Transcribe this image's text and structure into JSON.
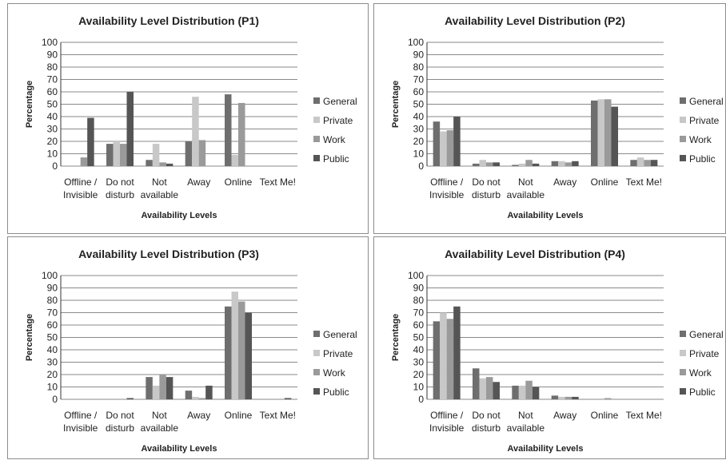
{
  "colors": {
    "General": "#6e6e6e",
    "Private": "#c8c8c8",
    "Work": "#9a9a9a",
    "Public": "#555555",
    "grid": "#8a8a8a",
    "axis": "#333333"
  },
  "chart_data": [
    {
      "type": "bar",
      "title": "Availability Level Distribution (P1)",
      "xlabel": "Availability Levels",
      "ylabel": "Percentage",
      "ylim": [
        0,
        100
      ],
      "yticks": [
        "0",
        "10",
        "20",
        "30",
        "40",
        "50",
        "60",
        "70",
        "80",
        "90",
        "100"
      ],
      "categories": [
        [
          "Offline /",
          "Invisible"
        ],
        [
          "Do not",
          "disturb"
        ],
        [
          "Not",
          "available"
        ],
        [
          "Away"
        ],
        [
          "Online"
        ],
        [
          "Text Me!"
        ]
      ],
      "legend_position": "right",
      "series": [
        {
          "name": "General",
          "values": [
            0,
            18,
            5,
            20,
            58,
            0
          ]
        },
        {
          "name": "Private",
          "values": [
            0,
            20,
            18,
            56,
            9,
            0
          ]
        },
        {
          "name": "Work",
          "values": [
            7,
            18,
            3,
            21,
            51,
            0
          ]
        },
        {
          "name": "Public",
          "values": [
            39,
            60,
            2,
            0,
            0,
            0
          ]
        }
      ]
    },
    {
      "type": "bar",
      "title": "Availability Level Distribution (P2)",
      "xlabel": "Availability Levels",
      "ylabel": "Percentage",
      "ylim": [
        0,
        100
      ],
      "yticks": [
        "0",
        "10",
        "20",
        "30",
        "40",
        "50",
        "60",
        "70",
        "80",
        "90",
        "100"
      ],
      "categories": [
        [
          "Offline /",
          "Invisible"
        ],
        [
          "Do not",
          "disturb"
        ],
        [
          "Not",
          "available"
        ],
        [
          "Away"
        ],
        [
          "Online"
        ],
        [
          "Text Me!"
        ]
      ],
      "legend_position": "right",
      "series": [
        {
          "name": "General",
          "values": [
            36,
            2,
            1,
            4,
            53,
            5
          ]
        },
        {
          "name": "Private",
          "values": [
            28,
            5,
            2,
            4,
            54,
            7
          ]
        },
        {
          "name": "Work",
          "values": [
            29,
            3,
            5,
            3,
            54,
            5
          ]
        },
        {
          "name": "Public",
          "values": [
            40,
            3,
            2,
            4,
            48,
            5
          ]
        }
      ]
    },
    {
      "type": "bar",
      "title": "Availability Level Distribution (P3)",
      "xlabel": "Availability Levels",
      "ylabel": "Percentage",
      "ylim": [
        0,
        100
      ],
      "yticks": [
        "0",
        "10",
        "20",
        "30",
        "40",
        "50",
        "60",
        "70",
        "80",
        "90",
        "100"
      ],
      "categories": [
        [
          "Offline /",
          "Invisible"
        ],
        [
          "Do not",
          "disturb"
        ],
        [
          "Not",
          "available"
        ],
        [
          "Away"
        ],
        [
          "Online"
        ],
        [
          "Text Me!"
        ]
      ],
      "legend_position": "right",
      "series": [
        {
          "name": "General",
          "values": [
            0,
            0,
            18,
            7,
            75,
            0
          ]
        },
        {
          "name": "Private",
          "values": [
            0,
            0,
            11,
            2,
            87,
            0
          ]
        },
        {
          "name": "Work",
          "values": [
            0,
            0,
            20,
            1,
            79,
            0
          ]
        },
        {
          "name": "Public",
          "values": [
            0,
            1,
            18,
            11,
            70,
            1
          ]
        }
      ]
    },
    {
      "type": "bar",
      "title": "Availability Level Distribution (P4)",
      "xlabel": "Availability Levels",
      "ylabel": "Percentage",
      "ylim": [
        0,
        100
      ],
      "yticks": [
        "0",
        "10",
        "20",
        "30",
        "40",
        "50",
        "60",
        "70",
        "80",
        "90",
        "100"
      ],
      "categories": [
        [
          "Offline /",
          "Invisible"
        ],
        [
          "Do not",
          "disturb"
        ],
        [
          "Not",
          "available"
        ],
        [
          "Away"
        ],
        [
          "Online"
        ],
        [
          "Text Me!"
        ]
      ],
      "legend_position": "right",
      "series": [
        {
          "name": "General",
          "values": [
            63,
            25,
            11,
            3,
            0,
            0
          ]
        },
        {
          "name": "Private",
          "values": [
            70,
            17,
            11,
            2,
            0,
            0
          ]
        },
        {
          "name": "Work",
          "values": [
            65,
            18,
            15,
            2,
            1,
            0
          ]
        },
        {
          "name": "Public",
          "values": [
            75,
            14,
            10,
            2,
            0,
            0
          ]
        }
      ]
    }
  ]
}
